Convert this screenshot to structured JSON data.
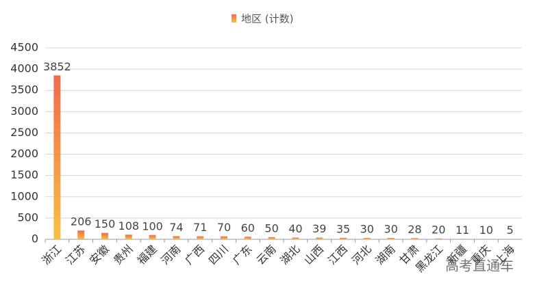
{
  "chart_data": {
    "type": "bar",
    "legend": "地区 (计数)",
    "categories": [
      "浙江",
      "江苏",
      "安徽",
      "贵州",
      "福建",
      "河南",
      "广西",
      "四川",
      "广东",
      "云南",
      "湖北",
      "山西",
      "江西",
      "河北",
      "湖南",
      "甘肃",
      "黑龙江",
      "新疆",
      "重庆",
      "上海"
    ],
    "values": [
      3852,
      206,
      150,
      108,
      100,
      74,
      71,
      70,
      60,
      50,
      40,
      39,
      35,
      30,
      30,
      28,
      20,
      11,
      10,
      5
    ],
    "color": [
      "#ef6c4f",
      "#f6c046"
    ],
    "ylim": [
      0,
      4500
    ],
    "yticks": [
      0,
      500,
      1000,
      1500,
      2000,
      2500,
      3000,
      3500,
      4000,
      4500
    ],
    "grid": true,
    "watermark": "高考直通车"
  }
}
